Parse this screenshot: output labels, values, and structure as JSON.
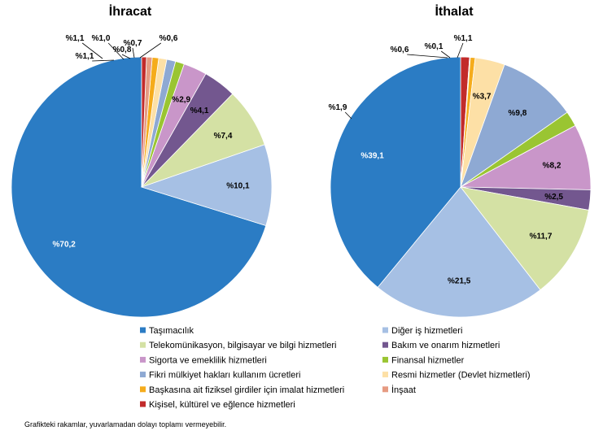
{
  "chart_data": [
    {
      "type": "pie",
      "title": "İhracat",
      "categories": [
        "Taşımacılık",
        "Diğer iş hizmetleri",
        "Telekomünikasyon, bilgisayar ve bilgi hizmetleri",
        "Bakım ve onarım hizmetleri",
        "Sigorta ve emeklilik hizmetleri",
        "Finansal hizmetler",
        "Fikri mülkiyet hakları kullanım ücretleri",
        "Resmi hizmetler (Devlet hizmetleri)",
        "Başkasına ait fiziksel girdiler için imalat hizmetleri",
        "İnşaat",
        "Kişisel, kültürel ve eğlence hizmetleri"
      ],
      "values": [
        70.2,
        10.1,
        7.4,
        4.1,
        2.9,
        1.1,
        1.1,
        1.0,
        0.8,
        0.7,
        0.6
      ],
      "labels": [
        "%70,2",
        "%10,1",
        "%7,4",
        "%4,1",
        "%2,9",
        "%1,1",
        "%1,1",
        "%1,0",
        "%0,8",
        "%0,7",
        "%0,6"
      ]
    },
    {
      "type": "pie",
      "title": "İthalat",
      "categories": [
        "Taşımacılık",
        "Diğer iş hizmetleri",
        "Telekomünikasyon, bilgisayar ve bilgi hizmetleri",
        "Bakım ve onarım hizmetleri",
        "Sigorta ve emeklilik hizmetleri",
        "Finansal hizmetler",
        "Fikri mülkiyet hakları kullanım ücretleri",
        "Resmi hizmetler (Devlet hizmetleri)",
        "Başkasına ait fiziksel girdiler için imalat hizmetleri",
        "İnşaat",
        "Kişisel, kültürel ve eğlence hizmetleri"
      ],
      "values": [
        39.1,
        21.5,
        11.7,
        2.5,
        8.2,
        1.9,
        9.8,
        3.7,
        0.6,
        0.1,
        1.1
      ],
      "labels": [
        "%39,1",
        "%21,5",
        "%11,7",
        "%2,5",
        "%8,2",
        "%1,9",
        "%9,8",
        "%3,7",
        "%0,6",
        "%0,1",
        "%1,1"
      ]
    }
  ],
  "colors": [
    "#2b7cc4",
    "#a6c0e4",
    "#d4e1a4",
    "#73578f",
    "#c996c9",
    "#9ac532",
    "#8ea9d3",
    "#fde0a6",
    "#f5ac1c",
    "#e69b82",
    "#c22b2b"
  ],
  "legend": {
    "placement": "bottom",
    "items": [
      "Taşımacılık",
      "Diğer iş hizmetleri",
      "Telekomünikasyon, bilgisayar ve bilgi hizmetleri",
      "Bakım ve onarım hizmetleri",
      "Sigorta ve emeklilik hizmetleri",
      "Finansal hizmetler",
      "Fikri mülkiyet hakları kullanım ücretleri",
      "Resmi hizmetler (Devlet hizmetleri)",
      "Başkasına ait fiziksel girdiler için imalat hizmetleri",
      "İnşaat",
      "Kişisel, kültürel ve eğlence hizmetleri"
    ]
  },
  "footnote": "Grafikteki rakamlar, yuvarlamadan dolayı toplamı vermeyebilir."
}
